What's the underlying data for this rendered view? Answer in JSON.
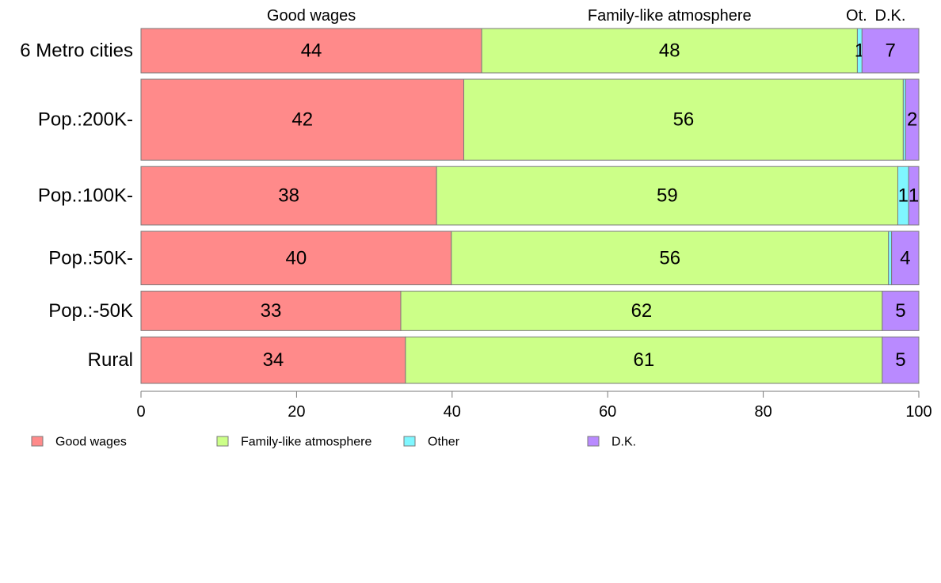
{
  "chart_data": {
    "type": "bar",
    "orientation": "horizontal",
    "stacked": true,
    "title": "",
    "xlabel": "",
    "ylabel": "",
    "xlim": [
      0,
      100
    ],
    "x_ticks": [
      0,
      20,
      40,
      60,
      80,
      100
    ],
    "categories": [
      "6 Metro cities",
      "Pop.:200K-",
      "Pop.:100K-",
      "Pop.:50K-",
      "Pop.:-50K",
      "Rural"
    ],
    "category_weights": [
      0.63,
      1.15,
      0.83,
      0.76,
      0.56,
      0.66
    ],
    "series": [
      {
        "name": "Good wages",
        "color": "#ff8a8a",
        "values": [
          43.8,
          41.5,
          38.0,
          39.9,
          33.4,
          34.0
        ],
        "labels": [
          "44",
          "42",
          "38",
          "40",
          "33",
          "34"
        ]
      },
      {
        "name": "Family-like atmosphere",
        "color": "#ccff88",
        "values": [
          48.3,
          56.5,
          59.3,
          56.2,
          61.9,
          61.3
        ],
        "labels": [
          "48",
          "56",
          "59",
          "56",
          "62",
          "61"
        ]
      },
      {
        "name": "Other",
        "color": "#7ff7ff",
        "values": [
          0.6,
          0.3,
          1.4,
          0.4,
          0.0,
          0.0
        ],
        "labels": [
          "1",
          "",
          "1",
          "",
          "",
          ""
        ]
      },
      {
        "name": "D.K.",
        "color": "#b98aff",
        "values": [
          7.3,
          1.7,
          1.3,
          3.5,
          4.7,
          4.7
        ],
        "labels": [
          "7",
          "2",
          "1",
          "4",
          "5",
          "5"
        ]
      }
    ],
    "column_headers": [
      "Good wages",
      "Family-like atmosphere",
      "Ot.",
      "D.K."
    ],
    "legend": {
      "placement": "bottom-left",
      "entries": [
        "Good wages",
        "Family-like atmosphere",
        "Other",
        "D.K."
      ]
    },
    "grid": false
  }
}
